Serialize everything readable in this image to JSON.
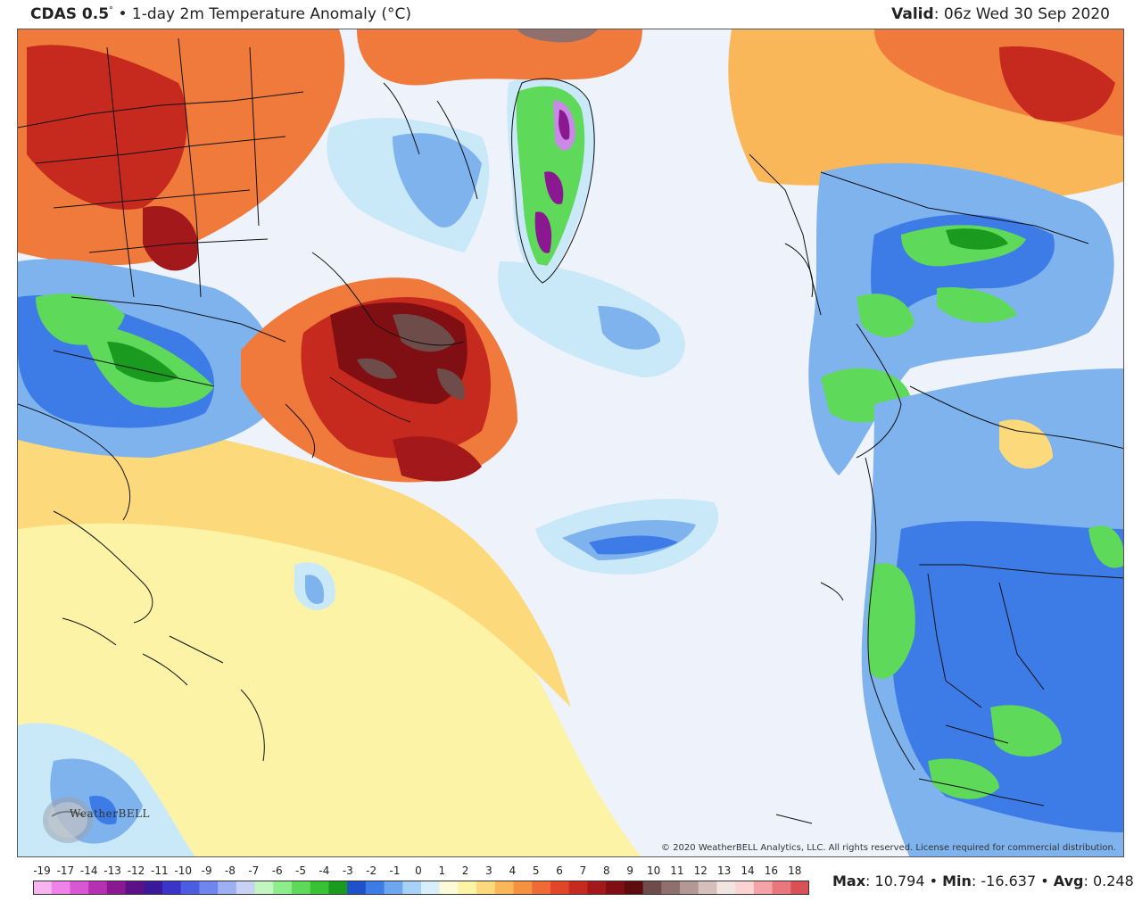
{
  "header": {
    "model": "CDAS 0.5",
    "degree": "°",
    "bullet": "•",
    "field": "1-day 2m Temperature Anomaly (",
    "unit": "°C",
    "close_paren": ")",
    "valid_label": "Valid",
    "valid_value": ": 06z Wed 30 Sep 2020"
  },
  "copyright": "© 2020 WeatherBELL Analytics, LLC. All rights reserved. License required for commercial distribution.",
  "logo": {
    "text": "WeatherBELL"
  },
  "colorbar": {
    "ticks": [
      "-19",
      "-17",
      "-14",
      "-13",
      "-12",
      "-11",
      "-10",
      "-9",
      "-8",
      "-7",
      "-6",
      "-5",
      "-4",
      "-3",
      "-2",
      "-1",
      "0",
      "1",
      "2",
      "3",
      "4",
      "5",
      "6",
      "7",
      "8",
      "9",
      "10",
      "11",
      "12",
      "13",
      "14",
      "16",
      "18"
    ],
    "colors": [
      "#f7b5f0",
      "#ef84e8",
      "#d957d4",
      "#b630b3",
      "#8a1991",
      "#5c1187",
      "#3a1a9a",
      "#3a35c8",
      "#4b5ee2",
      "#6f86ee",
      "#9fb0f2",
      "#c8d2f5",
      "#c2f5c0",
      "#8eec8a",
      "#5ed95a",
      "#36c233",
      "#1a9a1f",
      "#1f52c8",
      "#3d7be6",
      "#6ea6f0",
      "#a7d1f7",
      "#d8eefb",
      "#fdfad8",
      "#fdf3a6",
      "#fcd97a",
      "#f9b75a",
      "#f59242",
      "#ef6a34",
      "#e24628",
      "#c62a1e",
      "#a3181a",
      "#7f0f12",
      "#5e0c0e",
      "#6e4c4a",
      "#8f706d",
      "#b39893",
      "#d6c0bb",
      "#f2e4e0",
      "#fbd3d3",
      "#f4a4a6",
      "#e8787c",
      "#d95055"
    ]
  },
  "stats": {
    "max_label": "Max",
    "max_value": ": 10.794",
    "min_label": "Min",
    "min_value": ": -16.637",
    "avg_label": "Avg",
    "avg_value": ": 0.248",
    "sep": " • "
  },
  "map_colors": {
    "ocean_neutral": "#eef3fb",
    "warm_light": "#fdf3a6",
    "warm_mid": "#f9b75a",
    "warm": "#f07a3c",
    "hot": "#c62a1e",
    "very_hot": "#7f0f12",
    "max_hot": "#6e4c4a",
    "cool_light": "#c9e8f8",
    "cool": "#7fb3ee",
    "cold": "#3d7be6",
    "colder": "#1f52c8",
    "green": "#5ed95a",
    "green_dark": "#1a9a1f",
    "purple": "#8a1991",
    "violet": "#c98ae6"
  }
}
